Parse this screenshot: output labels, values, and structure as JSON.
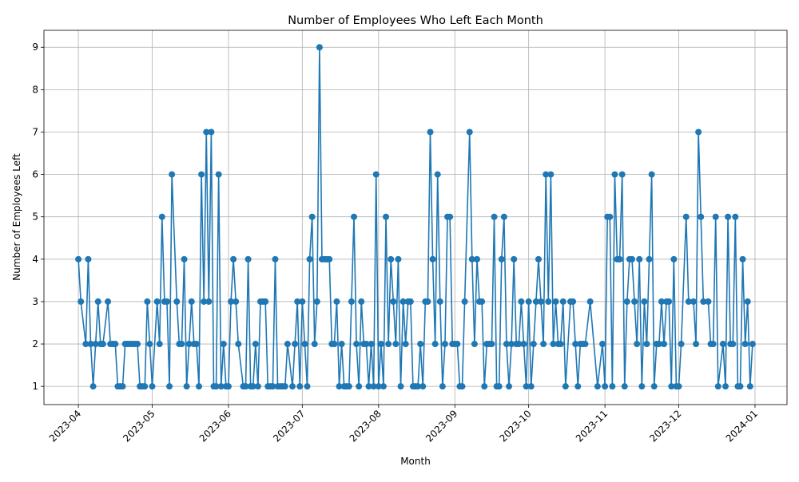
{
  "chart_data": {
    "type": "line",
    "title": "Number of Employees Who Left Each Month",
    "x_label": "Month",
    "y_label": "Number of Employees Left",
    "grid": true,
    "color": "#1f77b4",
    "marker": "circle",
    "xlim": [
      "2023-03-18",
      "2024-01-14"
    ],
    "ylim": [
      0.57,
      9.4
    ],
    "yticks": [
      1,
      2,
      3,
      4,
      5,
      6,
      7,
      8,
      9
    ],
    "xticks": [
      {
        "value": "2023-04-01",
        "label": "2023-04"
      },
      {
        "value": "2023-05-01",
        "label": "2023-05"
      },
      {
        "value": "2023-06-01",
        "label": "2023-06"
      },
      {
        "value": "2023-07-01",
        "label": "2023-07"
      },
      {
        "value": "2023-08-01",
        "label": "2023-08"
      },
      {
        "value": "2023-09-01",
        "label": "2023-09"
      },
      {
        "value": "2023-10-01",
        "label": "2023-10"
      },
      {
        "value": "2023-11-01",
        "label": "2023-11"
      },
      {
        "value": "2023-12-01",
        "label": "2023-12"
      },
      {
        "value": "2024-01-01",
        "label": "2024-01"
      }
    ],
    "x": [
      "2023-04-01",
      "2023-04-02",
      "2023-04-04",
      "2023-04-05",
      "2023-04-06",
      "2023-04-07",
      "2023-04-08",
      "2023-04-09",
      "2023-04-10",
      "2023-04-11",
      "2023-04-13",
      "2023-04-14",
      "2023-04-15",
      "2023-04-16",
      "2023-04-17",
      "2023-04-18",
      "2023-04-19",
      "2023-04-20",
      "2023-04-21",
      "2023-04-22",
      "2023-04-23",
      "2023-04-24",
      "2023-04-25",
      "2023-04-26",
      "2023-04-27",
      "2023-04-28",
      "2023-04-29",
      "2023-04-30",
      "2023-05-01",
      "2023-05-03",
      "2023-05-04",
      "2023-05-05",
      "2023-05-06",
      "2023-05-07",
      "2023-05-08",
      "2023-05-09",
      "2023-05-11",
      "2023-05-12",
      "2023-05-13",
      "2023-05-14",
      "2023-05-15",
      "2023-05-16",
      "2023-05-17",
      "2023-05-18",
      "2023-05-19",
      "2023-05-20",
      "2023-05-21",
      "2023-05-22",
      "2023-05-23",
      "2023-05-24",
      "2023-05-25",
      "2023-05-26",
      "2023-05-27",
      "2023-05-28",
      "2023-05-29",
      "2023-05-30",
      "2023-05-31",
      "2023-06-01",
      "2023-06-02",
      "2023-06-03",
      "2023-06-04",
      "2023-06-05",
      "2023-06-07",
      "2023-06-08",
      "2023-06-09",
      "2023-06-10",
      "2023-06-11",
      "2023-06-12",
      "2023-06-13",
      "2023-06-14",
      "2023-06-15",
      "2023-06-16",
      "2023-06-17",
      "2023-06-18",
      "2023-06-19",
      "2023-06-20",
      "2023-06-21",
      "2023-06-22",
      "2023-06-23",
      "2023-06-24",
      "2023-06-25",
      "2023-06-27",
      "2023-06-28",
      "2023-06-29",
      "2023-06-30",
      "2023-07-01",
      "2023-07-02",
      "2023-07-03",
      "2023-07-04",
      "2023-07-05",
      "2023-07-06",
      "2023-07-07",
      "2023-07-08",
      "2023-07-09",
      "2023-07-10",
      "2023-07-11",
      "2023-07-12",
      "2023-07-13",
      "2023-07-14",
      "2023-07-15",
      "2023-07-16",
      "2023-07-17",
      "2023-07-18",
      "2023-07-19",
      "2023-07-20",
      "2023-07-21",
      "2023-07-22",
      "2023-07-23",
      "2023-07-24",
      "2023-07-25",
      "2023-07-26",
      "2023-07-27",
      "2023-07-28",
      "2023-07-29",
      "2023-07-30",
      "2023-07-31",
      "2023-08-01",
      "2023-08-02",
      "2023-08-03",
      "2023-08-04",
      "2023-08-05",
      "2023-08-06",
      "2023-08-07",
      "2023-08-08",
      "2023-08-09",
      "2023-08-10",
      "2023-08-11",
      "2023-08-12",
      "2023-08-13",
      "2023-08-14",
      "2023-08-15",
      "2023-08-16",
      "2023-08-17",
      "2023-08-18",
      "2023-08-19",
      "2023-08-20",
      "2023-08-21",
      "2023-08-22",
      "2023-08-23",
      "2023-08-24",
      "2023-08-25",
      "2023-08-26",
      "2023-08-27",
      "2023-08-28",
      "2023-08-29",
      "2023-08-30",
      "2023-08-31",
      "2023-09-01",
      "2023-09-02",
      "2023-09-03",
      "2023-09-04",
      "2023-09-05",
      "2023-09-07",
      "2023-09-08",
      "2023-09-09",
      "2023-09-10",
      "2023-09-11",
      "2023-09-12",
      "2023-09-13",
      "2023-09-14",
      "2023-09-15",
      "2023-09-16",
      "2023-09-17",
      "2023-09-18",
      "2023-09-19",
      "2023-09-20",
      "2023-09-21",
      "2023-09-22",
      "2023-09-23",
      "2023-09-24",
      "2023-09-25",
      "2023-09-26",
      "2023-09-27",
      "2023-09-28",
      "2023-09-29",
      "2023-09-30",
      "2023-10-01",
      "2023-10-02",
      "2023-10-03",
      "2023-10-04",
      "2023-10-05",
      "2023-10-06",
      "2023-10-07",
      "2023-10-08",
      "2023-10-09",
      "2023-10-10",
      "2023-10-11",
      "2023-10-12",
      "2023-10-13",
      "2023-10-14",
      "2023-10-15",
      "2023-10-16",
      "2023-10-18",
      "2023-10-19",
      "2023-10-20",
      "2023-10-21",
      "2023-10-22",
      "2023-10-23",
      "2023-10-24",
      "2023-10-26",
      "2023-10-29",
      "2023-10-31",
      "2023-11-01",
      "2023-11-02",
      "2023-11-03",
      "2023-11-04",
      "2023-11-05",
      "2023-11-06",
      "2023-11-07",
      "2023-11-08",
      "2023-11-09",
      "2023-11-10",
      "2023-11-11",
      "2023-11-12",
      "2023-11-13",
      "2023-11-14",
      "2023-11-15",
      "2023-11-16",
      "2023-11-17",
      "2023-11-18",
      "2023-11-19",
      "2023-11-20",
      "2023-11-21",
      "2023-11-22",
      "2023-11-23",
      "2023-11-24",
      "2023-11-25",
      "2023-11-26",
      "2023-11-27",
      "2023-11-28",
      "2023-11-29",
      "2023-11-30",
      "2023-12-01",
      "2023-12-02",
      "2023-12-04",
      "2023-12-05",
      "2023-12-07",
      "2023-12-08",
      "2023-12-09",
      "2023-12-10",
      "2023-12-11",
      "2023-12-13",
      "2023-12-14",
      "2023-12-15",
      "2023-12-16",
      "2023-12-17",
      "2023-12-19",
      "2023-12-20",
      "2023-12-21",
      "2023-12-22",
      "2023-12-23",
      "2023-12-24",
      "2023-12-25",
      "2023-12-26",
      "2023-12-27",
      "2023-12-28",
      "2023-12-29",
      "2023-12-30",
      "2023-12-31"
    ],
    "values": [
      4,
      3,
      2,
      4,
      2,
      1,
      2,
      3,
      2,
      2,
      3,
      2,
      2,
      2,
      1,
      1,
      1,
      2,
      2,
      2,
      2,
      2,
      2,
      1,
      1,
      1,
      3,
      2,
      1,
      3,
      2,
      5,
      3,
      3,
      1,
      6,
      3,
      2,
      2,
      4,
      1,
      2,
      3,
      2,
      2,
      1,
      6,
      3,
      7,
      3,
      7,
      1,
      1,
      6,
      1,
      2,
      1,
      1,
      3,
      4,
      3,
      2,
      1,
      1,
      4,
      1,
      1,
      2,
      1,
      3,
      3,
      3,
      1,
      1,
      1,
      4,
      1,
      1,
      1,
      1,
      2,
      1,
      2,
      3,
      1,
      3,
      2,
      1,
      4,
      5,
      2,
      3,
      9,
      4,
      4,
      4,
      4,
      2,
      2,
      3,
      1,
      2,
      1,
      1,
      1,
      3,
      5,
      2,
      1,
      3,
      2,
      2,
      1,
      2,
      1,
      6,
      1,
      2,
      1,
      5,
      2,
      4,
      3,
      2,
      4,
      1,
      3,
      2,
      3,
      3,
      1,
      1,
      1,
      2,
      1,
      3,
      3,
      7,
      4,
      2,
      6,
      3,
      1,
      2,
      5,
      5,
      2,
      2,
      2,
      1,
      1,
      3,
      7,
      4,
      2,
      4,
      3,
      3,
      1,
      2,
      2,
      2,
      5,
      1,
      1,
      4,
      5,
      2,
      1,
      2,
      4,
      2,
      2,
      3,
      2,
      1,
      3,
      1,
      2,
      3,
      4,
      3,
      2,
      6,
      3,
      6,
      2,
      3,
      2,
      2,
      3,
      1,
      3,
      3,
      2,
      1,
      2,
      2,
      2,
      3,
      1,
      2,
      1,
      5,
      5,
      1,
      6,
      4,
      4,
      6,
      1,
      3,
      4,
      4,
      3,
      2,
      4,
      1,
      3,
      2,
      4,
      6,
      1,
      2,
      2,
      3,
      2,
      3,
      3,
      1,
      4,
      1,
      1,
      2,
      5,
      3,
      3,
      2,
      7,
      5,
      3,
      3,
      2,
      2,
      5,
      1,
      2,
      1,
      5,
      2,
      2,
      5,
      1,
      1,
      4,
      2,
      3,
      1,
      2
    ]
  }
}
